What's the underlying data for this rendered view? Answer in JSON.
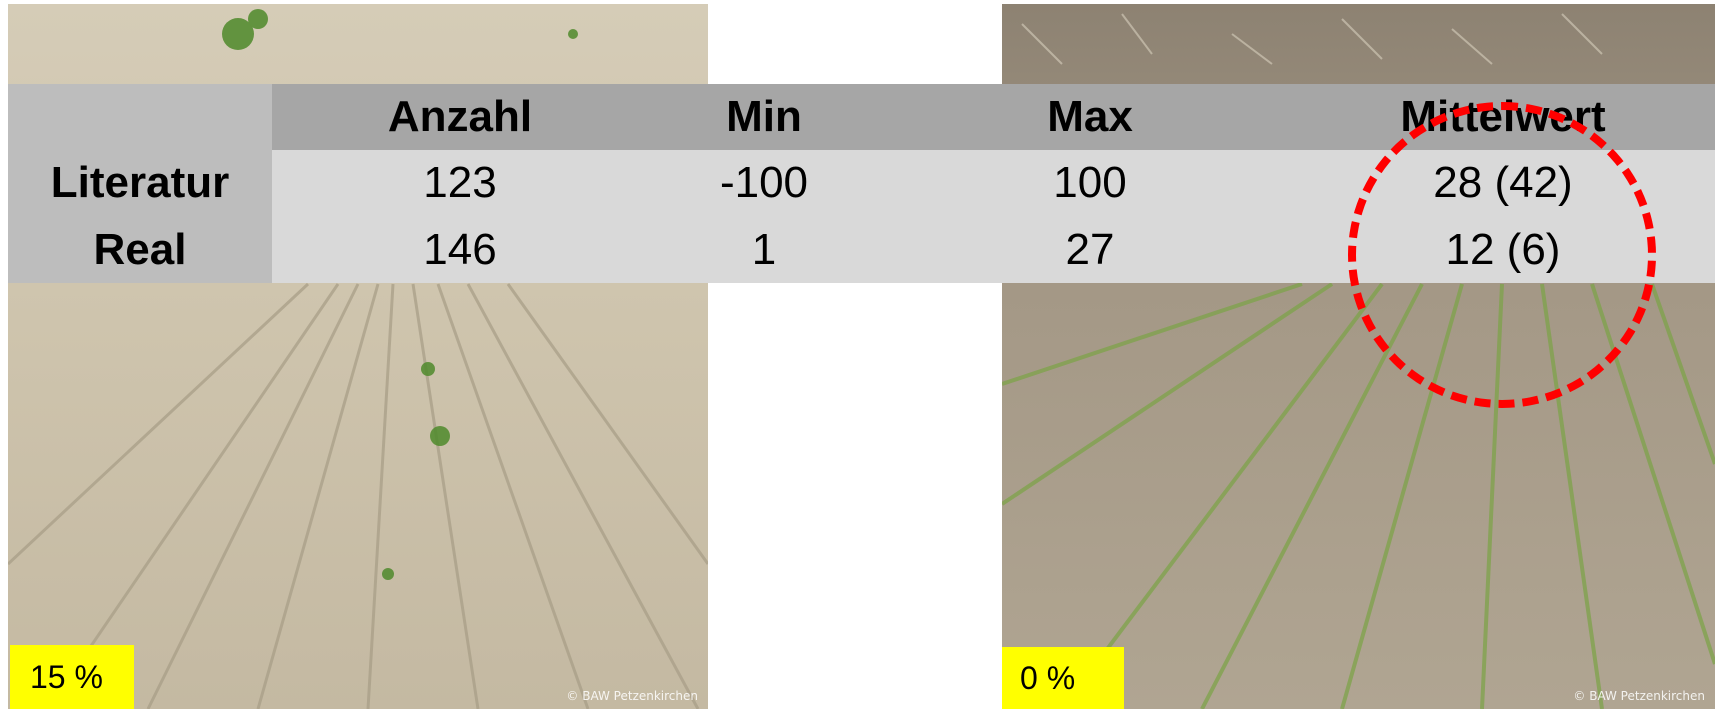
{
  "table": {
    "headers": [
      "Anzahl",
      "Min",
      "Max",
      "Mittelwert"
    ],
    "rows": [
      {
        "label": "Literatur",
        "values": [
          "123",
          "-100",
          "100",
          "28 (42)"
        ]
      },
      {
        "label": "Real",
        "values": [
          "146",
          "1",
          "27",
          "12 (6)"
        ]
      }
    ]
  },
  "photos": {
    "left": {
      "badge": "15 %",
      "copyright": "© BAW Petzenkirchen"
    },
    "right": {
      "badge": "0 %",
      "copyright": "© BAW Petzenkirchen"
    }
  },
  "colors": {
    "header_bg": "#a6a6a6",
    "body_bg": "#d9d9d9",
    "label_bg": "#bdbdbd",
    "badge_bg": "#ffff00",
    "highlight": "#ff0000"
  }
}
